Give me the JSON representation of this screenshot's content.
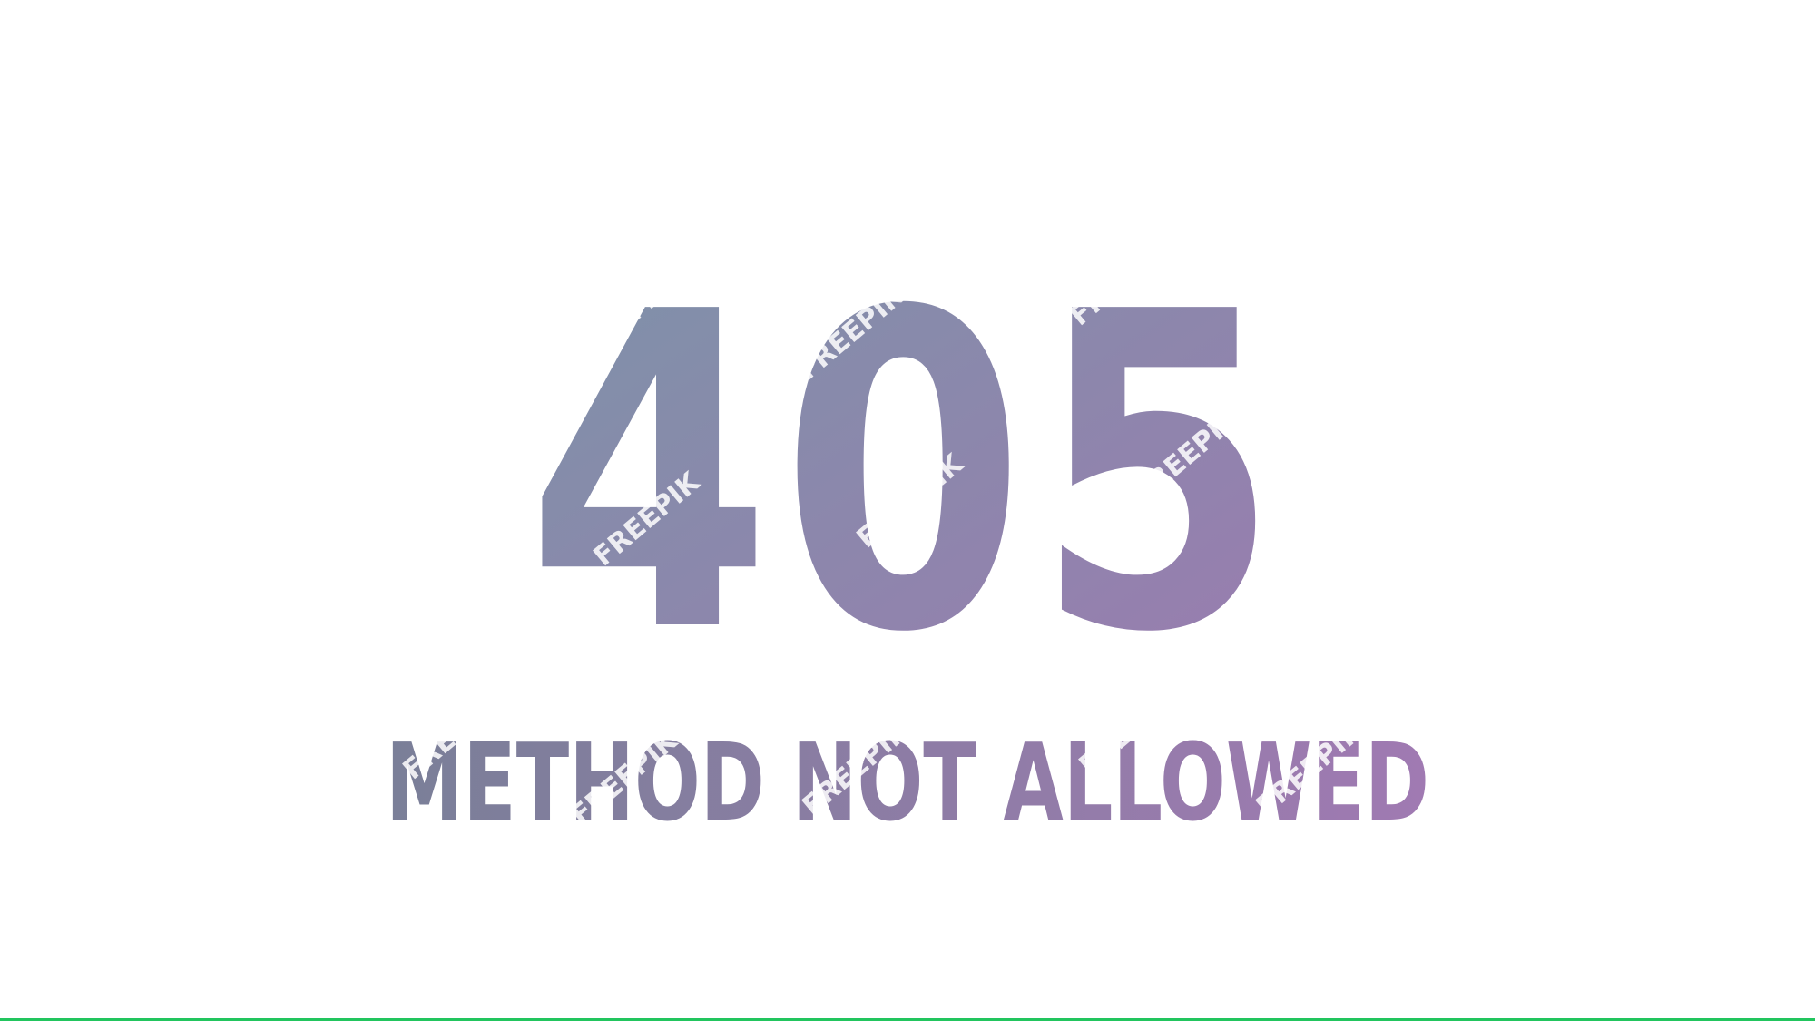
{
  "error": {
    "code": "405",
    "message": "METHOD NOT ALLOWED"
  },
  "watermark": {
    "text": "FREEPIK"
  },
  "colors": {
    "background": "#ffffff",
    "gradient_start": "#7d93a8",
    "gradient_end": "#9b7bb0",
    "watermark": "#ffffff",
    "bottom_line": "#22c55e"
  }
}
